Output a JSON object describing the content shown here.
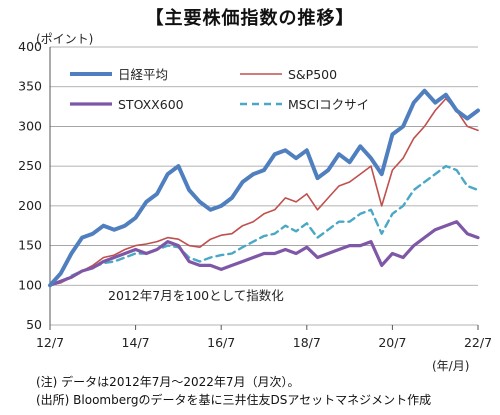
{
  "chart_data": {
    "type": "line",
    "title": "【主要株価指数の推移】",
    "ylabel": "(ポイント)",
    "xlabel": "(年/月)",
    "ylim": [
      50,
      400
    ],
    "yticks": [
      50,
      100,
      150,
      200,
      250,
      300,
      350,
      400
    ],
    "xlim": [
      "2012-07",
      "2022-07"
    ],
    "xticks": [
      "12/7",
      "14/7",
      "16/7",
      "18/7",
      "20/7",
      "22/7"
    ],
    "grid": "horizontal",
    "legend_position": "top",
    "annotation": "2012年7月を100として指数化",
    "x": [
      "2012-07",
      "2012-10",
      "2013-01",
      "2013-04",
      "2013-07",
      "2013-10",
      "2014-01",
      "2014-04",
      "2014-07",
      "2014-10",
      "2015-01",
      "2015-04",
      "2015-07",
      "2015-10",
      "2016-01",
      "2016-04",
      "2016-07",
      "2016-10",
      "2017-01",
      "2017-04",
      "2017-07",
      "2017-10",
      "2018-01",
      "2018-04",
      "2018-07",
      "2018-10",
      "2019-01",
      "2019-04",
      "2019-07",
      "2019-10",
      "2020-01",
      "2020-04",
      "2020-07",
      "2020-10",
      "2021-01",
      "2021-04",
      "2021-07",
      "2021-10",
      "2022-01",
      "2022-04",
      "2022-07"
    ],
    "series": [
      {
        "name": "日経平均",
        "color": "#4f7fbf",
        "width": 4,
        "values": [
          100,
          115,
          140,
          160,
          165,
          175,
          170,
          175,
          185,
          205,
          215,
          240,
          250,
          220,
          205,
          195,
          200,
          210,
          230,
          240,
          245,
          265,
          270,
          260,
          270,
          235,
          245,
          265,
          255,
          275,
          260,
          240,
          290,
          300,
          330,
          345,
          330,
          340,
          320,
          310,
          320
        ]
      },
      {
        "name": "S&P500",
        "color": "#c0504d",
        "width": 1.6,
        "values": [
          100,
          103,
          110,
          118,
          125,
          135,
          138,
          145,
          150,
          152,
          155,
          160,
          158,
          150,
          148,
          158,
          163,
          165,
          175,
          180,
          190,
          195,
          210,
          205,
          215,
          195,
          210,
          225,
          230,
          240,
          250,
          200,
          245,
          260,
          285,
          300,
          320,
          335,
          320,
          300,
          295
        ]
      },
      {
        "name": "STOXX600",
        "color": "#7e57a6",
        "width": 3.2,
        "values": [
          100,
          105,
          110,
          118,
          122,
          130,
          135,
          140,
          145,
          140,
          145,
          155,
          150,
          130,
          125,
          125,
          120,
          125,
          130,
          135,
          140,
          140,
          145,
          140,
          148,
          135,
          140,
          145,
          150,
          150,
          155,
          125,
          140,
          135,
          150,
          160,
          170,
          175,
          180,
          165,
          160
        ]
      },
      {
        "name": "MSCIコクサイ",
        "color": "#4aa8c6",
        "width": 2.4,
        "dash": "7 5",
        "values": [
          100,
          104,
          112,
          118,
          122,
          128,
          130,
          135,
          140,
          140,
          145,
          150,
          148,
          135,
          130,
          135,
          138,
          140,
          148,
          155,
          162,
          165,
          175,
          168,
          178,
          160,
          170,
          180,
          180,
          190,
          195,
          165,
          190,
          200,
          220,
          230,
          240,
          250,
          245,
          225,
          220
        ]
      }
    ]
  },
  "notes": {
    "line1": "(注) データは2012年7月～2022年7月（月次）。",
    "line2": "(出所) Bloombergのデータを基に三井住友DSアセットマネジメント作成"
  }
}
